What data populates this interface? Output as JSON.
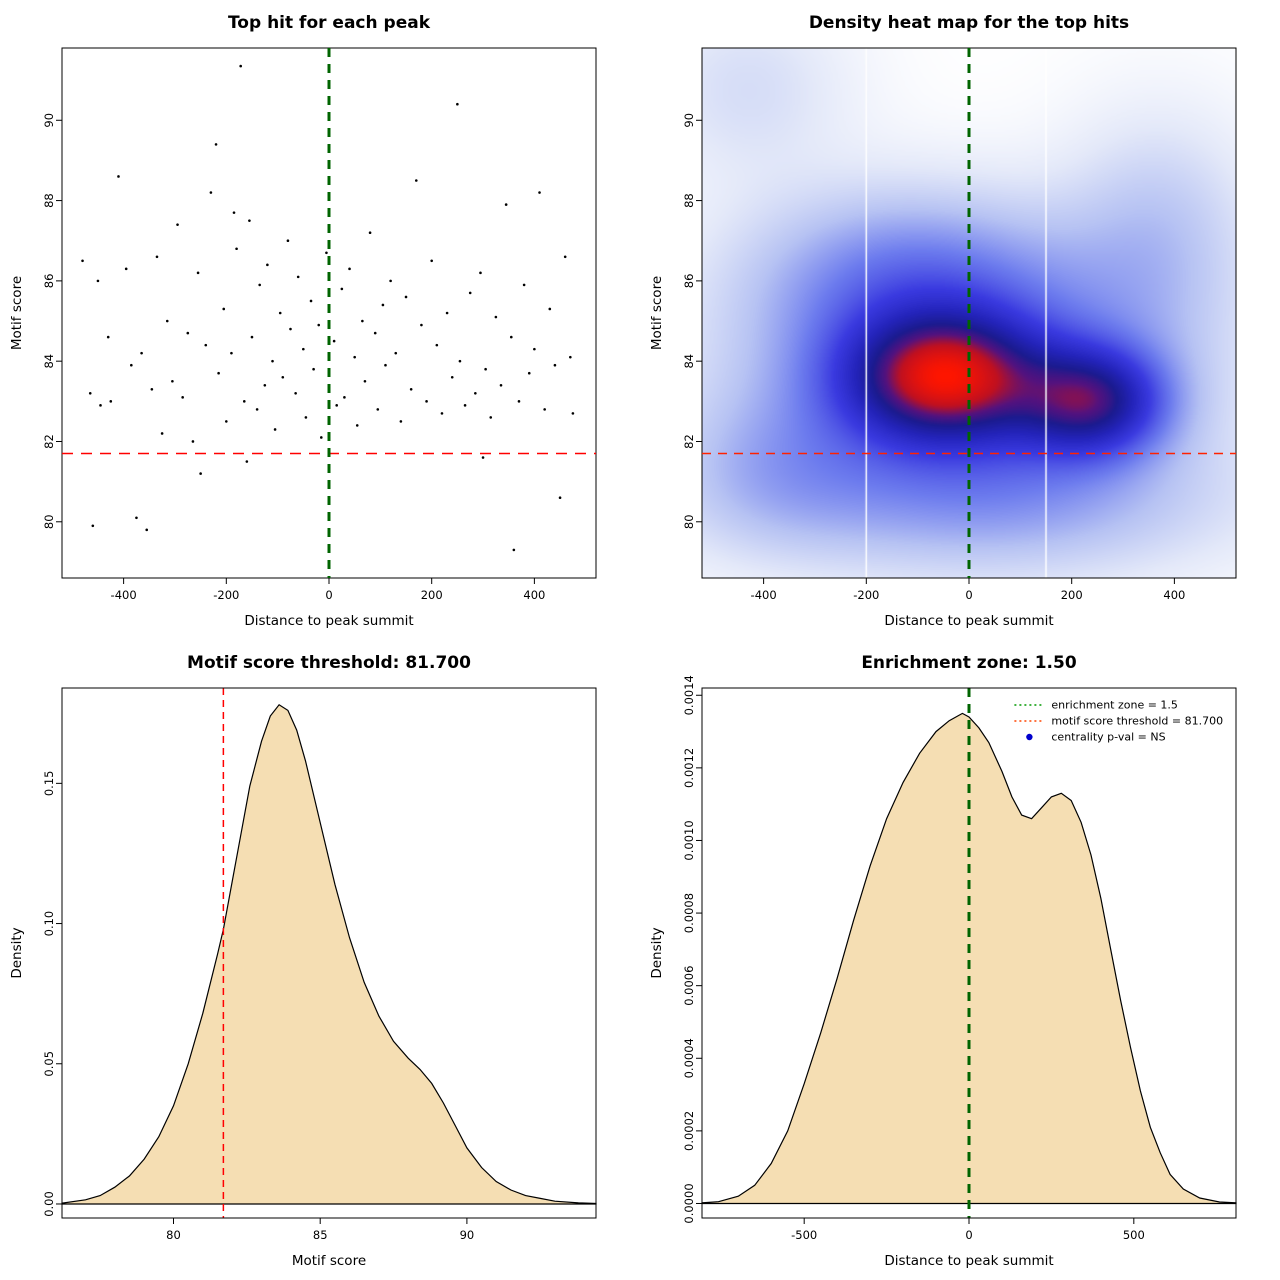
{
  "page": {
    "background": "#ffffff"
  },
  "chart_data": [
    {
      "id": "top-hit-scatter",
      "type": "scatter",
      "title": "Top hit for each peak",
      "xlabel": "Distance to peak summit",
      "ylabel": "Motif score",
      "xlim": [
        -520,
        520
      ],
      "ylim": [
        78.6,
        91.8
      ],
      "xticks": [
        -400,
        -200,
        0,
        200,
        400
      ],
      "xtick_labels": [
        "-400",
        "-200",
        "0",
        "200",
        "400"
      ],
      "yticks": [
        80,
        82,
        84,
        86,
        88,
        90
      ],
      "ytick_labels": [
        "80",
        "82",
        "84",
        "86",
        "88",
        "90"
      ],
      "vline": {
        "x": 0,
        "color": "#006400",
        "width": 3,
        "dash": "9,7",
        "name": "enrichment-zone-line"
      },
      "hline": {
        "y": 81.7,
        "color": "#ff0000",
        "width": 1.5,
        "dash": "11,8",
        "name": "motif-threshold-line"
      },
      "point_color": "#000000",
      "points": [
        [
          -480,
          86.5
        ],
        [
          -465,
          83.2
        ],
        [
          -460,
          79.9
        ],
        [
          -450,
          86.0
        ],
        [
          -445,
          82.9
        ],
        [
          -430,
          84.6
        ],
        [
          -425,
          83.0
        ],
        [
          -410,
          88.6
        ],
        [
          -395,
          86.3
        ],
        [
          -385,
          83.9
        ],
        [
          -375,
          80.1
        ],
        [
          -365,
          84.2
        ],
        [
          -355,
          79.8
        ],
        [
          -345,
          83.3
        ],
        [
          -335,
          86.6
        ],
        [
          -325,
          82.2
        ],
        [
          -315,
          85.0
        ],
        [
          -305,
          83.5
        ],
        [
          -295,
          87.4
        ],
        [
          -285,
          83.1
        ],
        [
          -275,
          84.7
        ],
        [
          -265,
          82.0
        ],
        [
          -255,
          86.2
        ],
        [
          -250,
          81.2
        ],
        [
          -240,
          84.4
        ],
        [
          -230,
          88.2
        ],
        [
          -220,
          89.4
        ],
        [
          -215,
          83.7
        ],
        [
          -205,
          85.3
        ],
        [
          -200,
          82.5
        ],
        [
          -190,
          84.2
        ],
        [
          -185,
          87.7
        ],
        [
          -180,
          86.8
        ],
        [
          -172,
          91.35
        ],
        [
          -165,
          83.0
        ],
        [
          -160,
          81.5
        ],
        [
          -155,
          87.5
        ],
        [
          -150,
          84.6
        ],
        [
          -140,
          82.8
        ],
        [
          -135,
          85.9
        ],
        [
          -125,
          83.4
        ],
        [
          -120,
          86.4
        ],
        [
          -110,
          84.0
        ],
        [
          -105,
          82.3
        ],
        [
          -95,
          85.2
        ],
        [
          -90,
          83.6
        ],
        [
          -80,
          87.0
        ],
        [
          -75,
          84.8
        ],
        [
          -65,
          83.2
        ],
        [
          -60,
          86.1
        ],
        [
          -50,
          84.3
        ],
        [
          -45,
          82.6
        ],
        [
          -35,
          85.5
        ],
        [
          -30,
          83.8
        ],
        [
          -20,
          84.9
        ],
        [
          -15,
          82.1
        ],
        [
          -5,
          86.7
        ],
        [
          0,
          83.3
        ],
        [
          10,
          84.5
        ],
        [
          15,
          82.9
        ],
        [
          25,
          85.8
        ],
        [
          30,
          83.1
        ],
        [
          40,
          86.3
        ],
        [
          50,
          84.1
        ],
        [
          55,
          82.4
        ],
        [
          65,
          85.0
        ],
        [
          70,
          83.5
        ],
        [
          80,
          87.2
        ],
        [
          90,
          84.7
        ],
        [
          95,
          82.8
        ],
        [
          105,
          85.4
        ],
        [
          110,
          83.9
        ],
        [
          120,
          86.0
        ],
        [
          130,
          84.2
        ],
        [
          140,
          82.5
        ],
        [
          150,
          85.6
        ],
        [
          160,
          83.3
        ],
        [
          170,
          88.5
        ],
        [
          180,
          84.9
        ],
        [
          190,
          83.0
        ],
        [
          200,
          86.5
        ],
        [
          210,
          84.4
        ],
        [
          220,
          82.7
        ],
        [
          230,
          85.2
        ],
        [
          240,
          83.6
        ],
        [
          250,
          90.4
        ],
        [
          255,
          84.0
        ],
        [
          265,
          82.9
        ],
        [
          275,
          85.7
        ],
        [
          285,
          83.2
        ],
        [
          295,
          86.2
        ],
        [
          300,
          81.6
        ],
        [
          305,
          83.8
        ],
        [
          315,
          82.6
        ],
        [
          325,
          85.1
        ],
        [
          335,
          83.4
        ],
        [
          345,
          87.9
        ],
        [
          355,
          84.6
        ],
        [
          360,
          79.3
        ],
        [
          370,
          83.0
        ],
        [
          380,
          85.9
        ],
        [
          390,
          83.7
        ],
        [
          400,
          84.3
        ],
        [
          410,
          88.2
        ],
        [
          420,
          82.8
        ],
        [
          430,
          85.3
        ],
        [
          440,
          83.9
        ],
        [
          450,
          80.6
        ],
        [
          460,
          86.6
        ],
        [
          470,
          84.1
        ],
        [
          475,
          82.7
        ]
      ]
    },
    {
      "id": "top-hit-heatmap",
      "type": "heatmap",
      "title": "Density heat map for the top hits",
      "xlabel": "Distance to peak summit",
      "ylabel": "Motif score",
      "xlim": [
        -520,
        520
      ],
      "ylim": [
        78.6,
        91.8
      ],
      "xticks": [
        -400,
        -200,
        0,
        200,
        400
      ],
      "xtick_labels": [
        "-400",
        "-200",
        "0",
        "200",
        "400"
      ],
      "yticks": [
        80,
        82,
        84,
        86,
        88,
        90
      ],
      "ytick_labels": [
        "80",
        "82",
        "84",
        "86",
        "88",
        "90"
      ],
      "vline": {
        "x": 0,
        "color": "#006400",
        "width": 3,
        "dash": "9,7",
        "name": "enrichment-zone-line"
      },
      "hline": {
        "y": 81.7,
        "color": "#ff2200",
        "width": 1.5,
        "dash": "9,7",
        "name": "motif-threshold-line"
      },
      "gamma": 0.8,
      "gap_lines_x": [
        -200,
        150
      ],
      "kernels": [
        {
          "x": -50,
          "y": 83.6,
          "sx": 125,
          "sy": 1.05,
          "w": 1.0
        },
        {
          "x": 240,
          "y": 83.0,
          "sx": 95,
          "sy": 0.9,
          "w": 0.78
        },
        {
          "x": -10,
          "y": 83.4,
          "sx": 290,
          "sy": 2.1,
          "w": 0.5
        },
        {
          "x": -120,
          "y": 86.2,
          "sx": 220,
          "sy": 1.5,
          "w": 0.32
        },
        {
          "x": 370,
          "y": 87.2,
          "sx": 130,
          "sy": 2.0,
          "w": 0.2
        },
        {
          "x": -430,
          "y": 90.8,
          "sx": 140,
          "sy": 1.6,
          "w": 0.13
        },
        {
          "x": 60,
          "y": 80.4,
          "sx": 330,
          "sy": 1.3,
          "w": 0.22
        },
        {
          "x": -390,
          "y": 81.2,
          "sx": 150,
          "sy": 1.4,
          "w": 0.16
        }
      ],
      "colormap": [
        [
          0.0,
          "#ffffff"
        ],
        [
          0.1,
          "#e4e9f9"
        ],
        [
          0.22,
          "#b7c3f3"
        ],
        [
          0.36,
          "#6d7cee"
        ],
        [
          0.5,
          "#3a3ae0"
        ],
        [
          0.62,
          "#2424bb"
        ],
        [
          0.72,
          "#1b1b8f"
        ],
        [
          0.8,
          "#55127e"
        ],
        [
          0.88,
          "#c01020"
        ],
        [
          1.0,
          "#ff1500"
        ]
      ]
    },
    {
      "id": "motif-score-density",
      "type": "area",
      "title": "Motif score threshold: 81.700",
      "xlabel": "Motif score",
      "ylabel": "Density",
      "xlim": [
        76.2,
        94.4
      ],
      "ylim": [
        -0.005,
        0.184
      ],
      "xticks": [
        80,
        85,
        90
      ],
      "xtick_labels": [
        "80",
        "85",
        "90"
      ],
      "yticks": [
        0,
        0.05,
        0.1,
        0.15
      ],
      "ytick_labels": [
        "0.00",
        "0.05",
        "0.10",
        "0.15"
      ],
      "vline": {
        "x": 81.7,
        "color": "#ff0000",
        "width": 1.5,
        "dash": "7,5",
        "name": "motif-threshold-line"
      },
      "fill": "#f5deb3",
      "curve": [
        [
          76.2,
          0.0003
        ],
        [
          77,
          0.0015
        ],
        [
          77.5,
          0.003
        ],
        [
          78,
          0.006
        ],
        [
          78.5,
          0.01
        ],
        [
          79,
          0.016
        ],
        [
          79.5,
          0.024
        ],
        [
          80,
          0.035
        ],
        [
          80.5,
          0.05
        ],
        [
          81,
          0.068
        ],
        [
          81.5,
          0.089
        ],
        [
          81.7,
          0.098
        ],
        [
          82,
          0.115
        ],
        [
          82.3,
          0.132
        ],
        [
          82.6,
          0.149
        ],
        [
          83,
          0.165
        ],
        [
          83.3,
          0.174
        ],
        [
          83.6,
          0.178
        ],
        [
          83.9,
          0.176
        ],
        [
          84.2,
          0.169
        ],
        [
          84.5,
          0.158
        ],
        [
          85,
          0.136
        ],
        [
          85.5,
          0.114
        ],
        [
          86,
          0.095
        ],
        [
          86.5,
          0.079
        ],
        [
          87,
          0.067
        ],
        [
          87.5,
          0.058
        ],
        [
          88,
          0.052
        ],
        [
          88.4,
          0.048
        ],
        [
          88.8,
          0.043
        ],
        [
          89.2,
          0.036
        ],
        [
          89.6,
          0.028
        ],
        [
          90,
          0.02
        ],
        [
          90.5,
          0.013
        ],
        [
          91,
          0.008
        ],
        [
          91.5,
          0.005
        ],
        [
          92,
          0.003
        ],
        [
          92.5,
          0.002
        ],
        [
          93,
          0.001
        ],
        [
          93.8,
          0.0004
        ],
        [
          94.4,
          0.0002
        ]
      ]
    },
    {
      "id": "distance-density",
      "type": "area",
      "title": "Enrichment zone: 1.50",
      "xlabel": "Distance to peak summit",
      "ylabel": "Density",
      "xlim": [
        -810,
        810
      ],
      "ylim": [
        -4e-05,
        0.00142
      ],
      "xticks": [
        -500,
        0,
        500
      ],
      "xtick_labels": [
        "-500",
        "0",
        "500"
      ],
      "yticks": [
        0,
        0.0002,
        0.0004,
        0.0006,
        0.0008,
        0.001,
        0.0012,
        0.0014
      ],
      "ytick_labels": [
        "0.0000",
        "0.0002",
        "0.0004",
        "0.0006",
        "0.0008",
        "0.0010",
        "0.0012",
        "0.0014"
      ],
      "vline": {
        "x": 0,
        "color": "#006400",
        "width": 3,
        "dash": "9,7",
        "name": "enrichment-zone-line"
      },
      "fill": "#f5deb3",
      "curve": [
        [
          -810,
          2e-06
        ],
        [
          -760,
          5e-06
        ],
        [
          -700,
          2e-05
        ],
        [
          -650,
          5e-05
        ],
        [
          -600,
          0.00011
        ],
        [
          -550,
          0.0002
        ],
        [
          -500,
          0.00033
        ],
        [
          -450,
          0.00047
        ],
        [
          -400,
          0.00062
        ],
        [
          -350,
          0.00078
        ],
        [
          -300,
          0.00093
        ],
        [
          -250,
          0.00106
        ],
        [
          -200,
          0.00116
        ],
        [
          -150,
          0.00124
        ],
        [
          -100,
          0.0013
        ],
        [
          -60,
          0.00133
        ],
        [
          -20,
          0.00135
        ],
        [
          0,
          0.00134
        ],
        [
          30,
          0.00131
        ],
        [
          60,
          0.00127
        ],
        [
          100,
          0.00119
        ],
        [
          130,
          0.00112
        ],
        [
          160,
          0.00107
        ],
        [
          190,
          0.00106
        ],
        [
          220,
          0.00109
        ],
        [
          250,
          0.00112
        ],
        [
          280,
          0.00113
        ],
        [
          310,
          0.00111
        ],
        [
          340,
          0.00105
        ],
        [
          370,
          0.00096
        ],
        [
          400,
          0.00084
        ],
        [
          430,
          0.0007
        ],
        [
          460,
          0.00056
        ],
        [
          490,
          0.00043
        ],
        [
          520,
          0.00031
        ],
        [
          550,
          0.00021
        ],
        [
          580,
          0.00014
        ],
        [
          610,
          8e-05
        ],
        [
          650,
          4e-05
        ],
        [
          700,
          1.5e-05
        ],
        [
          760,
          4e-06
        ],
        [
          810,
          2e-06
        ]
      ],
      "legend": [
        {
          "label": "enrichment zone = 1.5",
          "color": "#009900",
          "type": "dotted-line"
        },
        {
          "label": "motif score threshold = 81.700",
          "color": "#ff4500",
          "type": "dotted-line"
        },
        {
          "label": "centrality p-val = NS",
          "color": "#0000cd",
          "type": "point"
        }
      ]
    }
  ]
}
